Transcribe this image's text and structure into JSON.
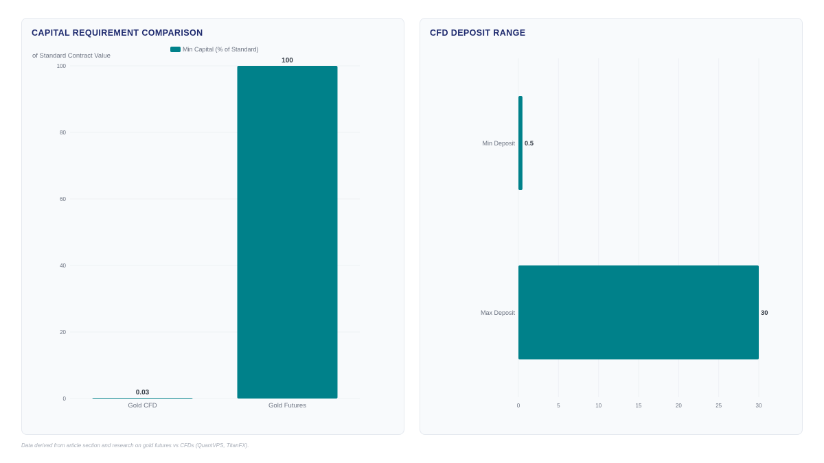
{
  "footnote": "Data derived from article section and research on gold futures vs CFDs (QuantVPS, TitanFX).",
  "colors": {
    "bar": "#00818a",
    "grid": "#eef1f5",
    "axis_text": "#6b7280",
    "label_text": "#333a44",
    "title": "#1e2a6e"
  },
  "chart_data": [
    {
      "type": "bar",
      "title": "CAPITAL REQUIREMENT COMPARISON",
      "categories": [
        "Gold CFD",
        "Gold Futures"
      ],
      "series": [
        {
          "name": "Min Capital (% of Standard)",
          "values": [
            0.03,
            100
          ]
        }
      ],
      "data_labels": [
        "0.03",
        "100"
      ],
      "ylabel": "of Standard Contract Value",
      "xlabel": "",
      "ylim": [
        0,
        100
      ],
      "yticks": [
        "0",
        "20",
        "40",
        "60",
        "80",
        "100"
      ],
      "grid": true,
      "legend": "top-center"
    },
    {
      "type": "bar",
      "orientation": "horizontal",
      "title": "CFD DEPOSIT RANGE",
      "categories": [
        "Min Deposit",
        "Max Deposit"
      ],
      "values": [
        0.5,
        30
      ],
      "data_labels": [
        "0.5",
        "30"
      ],
      "xlim": [
        0,
        30
      ],
      "xticks": [
        "0",
        "5",
        "10",
        "15",
        "20",
        "25",
        "30"
      ],
      "grid": true,
      "legend": "none"
    }
  ]
}
